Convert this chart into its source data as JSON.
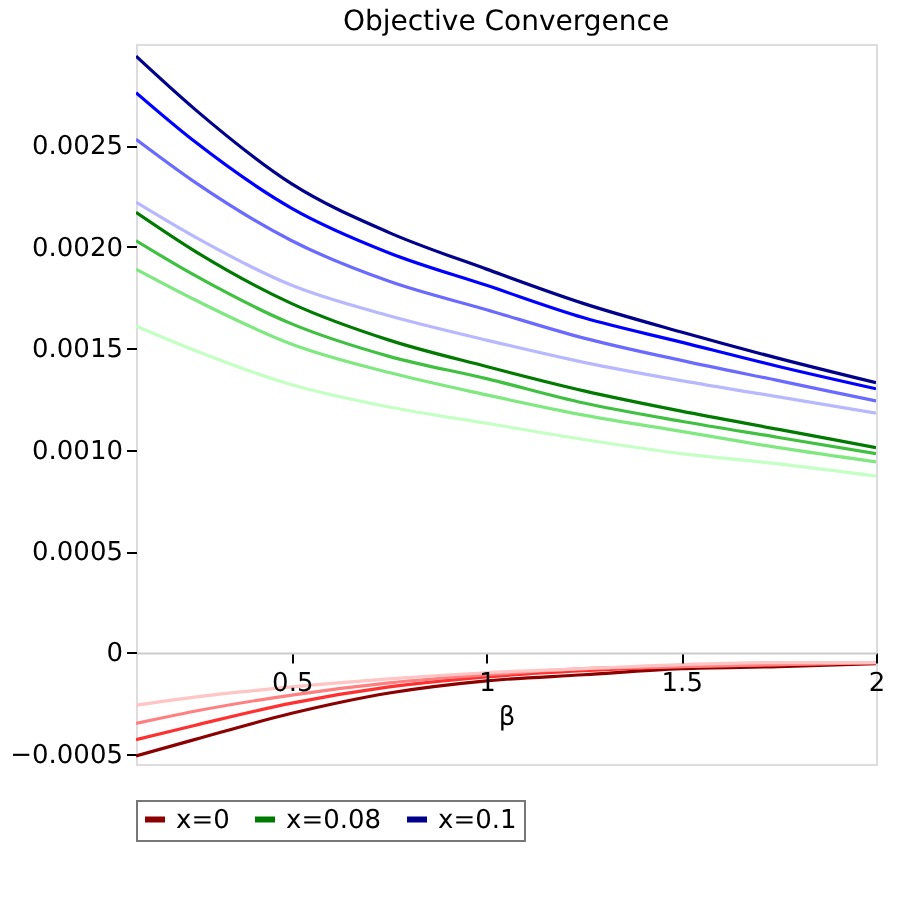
{
  "chart_data": {
    "type": "line",
    "title": "Objective Convergence",
    "xlabel": "β",
    "xlim": [
      0.1,
      2
    ],
    "ylim": [
      -0.00055,
      0.003
    ],
    "xticks": [
      0.5,
      1,
      1.5,
      2
    ],
    "yticks": [
      {
        "value": -0.0005,
        "label": "−0.0005"
      },
      0,
      0.0005,
      {
        "value": 0.001,
        "label": "0.0010"
      },
      0.0015,
      {
        "value": 0.002,
        "label": "0.0020"
      },
      0.0025
    ],
    "grid": false,
    "legend": "bottom",
    "line_style": "solid",
    "marker": "none",
    "x": [
      0.1,
      0.25,
      0.5,
      0.75,
      1,
      1.25,
      1.5,
      1.75,
      2
    ],
    "series": [
      {
        "name": "x=0",
        "color": "#8b0000",
        "values": [
          -0.00051,
          -0.00043,
          -0.0003,
          -0.0002,
          -0.00014,
          -0.00011,
          -8e-05,
          -7e-05,
          -5.5e-05
        ]
      },
      {
        "color": "#ff3030",
        "values": [
          -0.00043,
          -0.00036,
          -0.00025,
          -0.00017,
          -0.00012,
          -9e-05,
          -7e-05,
          -6e-05,
          -5e-05
        ]
      },
      {
        "color": "#ff8080",
        "values": [
          -0.00035,
          -0.00029,
          -0.00021,
          -0.00015,
          -0.00011,
          -8e-05,
          -7e-05,
          -6e-05,
          -5e-05
        ]
      },
      {
        "color": "#ffc4c4",
        "values": [
          -0.00026,
          -0.00022,
          -0.00017,
          -0.00013,
          -0.0001,
          -8e-05,
          -6e-05,
          -5e-05,
          -5e-05
        ]
      },
      {
        "name": "x=0.08",
        "color": "#007a00",
        "values": [
          0.00217,
          0.00198,
          0.00172,
          0.00154,
          0.00141,
          0.00129,
          0.00119,
          0.0011,
          0.00101
        ]
      },
      {
        "color": "#40c040",
        "values": [
          0.00203,
          0.00186,
          0.00162,
          0.00146,
          0.00135,
          0.00123,
          0.00114,
          0.00106,
          0.00098
        ]
      },
      {
        "color": "#80e880",
        "values": [
          0.00189,
          0.00174,
          0.00152,
          0.00138,
          0.00127,
          0.00117,
          0.00109,
          0.00101,
          0.00094
        ]
      },
      {
        "color": "#c4ffc4",
        "values": [
          0.00161,
          0.00149,
          0.00132,
          0.00121,
          0.00113,
          0.00105,
          0.00098,
          0.00093,
          0.00087
        ]
      },
      {
        "name": "x=0.1",
        "color": "#00008b",
        "values": [
          0.00294,
          0.00268,
          0.00231,
          0.00207,
          0.00189,
          0.00172,
          0.00158,
          0.00145,
          0.00133
        ]
      },
      {
        "color": "#0000ff",
        "values": [
          0.00276,
          0.00252,
          0.00219,
          0.00197,
          0.00181,
          0.00165,
          0.00153,
          0.00141,
          0.0013
        ]
      },
      {
        "color": "#6a6aff",
        "values": [
          0.00253,
          0.00232,
          0.00203,
          0.00183,
          0.00169,
          0.00155,
          0.00144,
          0.00134,
          0.00124
        ]
      },
      {
        "color": "#b8b8ff",
        "values": [
          0.00222,
          0.00205,
          0.00181,
          0.00166,
          0.00154,
          0.00143,
          0.00134,
          0.00126,
          0.00118
        ]
      }
    ]
  }
}
